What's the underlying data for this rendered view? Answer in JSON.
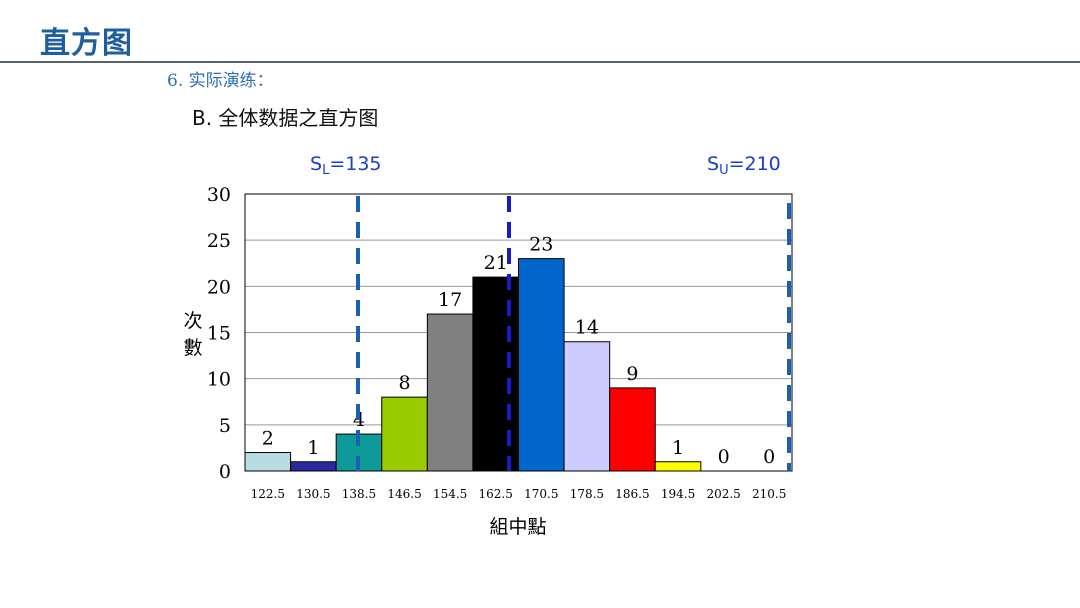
{
  "header": {
    "title": "直方图",
    "section": "6. 实际演练：",
    "subtitle": "B. 全体数据之直方图"
  },
  "chart_data": {
    "type": "bar",
    "title": "",
    "xlabel": "組中點",
    "ylabel_chars": [
      "次",
      "數"
    ],
    "ylim": [
      0,
      30
    ],
    "yticks": [
      0,
      5,
      10,
      15,
      20,
      25,
      30
    ],
    "categories": [
      "122.5",
      "130.5",
      "138.5",
      "146.5",
      "154.5",
      "162.5",
      "170.5",
      "178.5",
      "186.5",
      "194.5",
      "202.5",
      "210.5"
    ],
    "values": [
      2,
      1,
      4,
      8,
      17,
      21,
      23,
      14,
      9,
      1,
      0,
      0
    ],
    "bar_colors": [
      "#b8dce4",
      "#2a2aa0",
      "#0f9a9a",
      "#99cc00",
      "#808080",
      "#000000",
      "#0066cc",
      "#ccccff",
      "#ff0000",
      "#ffff00",
      "#ffffff",
      "#ffffff"
    ],
    "grid": true,
    "limits": [
      {
        "sub": "L",
        "text": "S",
        "value": "135",
        "color": "#1a5fb4"
      },
      {
        "sub": "",
        "text": "",
        "value": "",
        "color": "#1a1ac8"
      },
      {
        "sub": "U",
        "text": "S",
        "value": "210",
        "color": "#1a5fb4"
      }
    ]
  }
}
